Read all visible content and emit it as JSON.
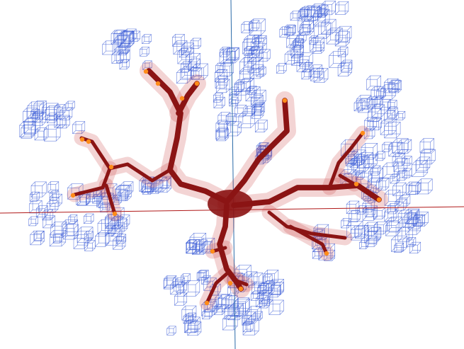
{
  "colors": {
    "background": "#ffffff",
    "axis_horizontal": "#b01818",
    "axis_vertical": "#2a6aa8",
    "bounding_box": "#3a5bd6",
    "vessel": "#8b1414",
    "vessel_halo": "#c83a3a",
    "node": "#ff8c1a"
  },
  "scene": {
    "view": "3d-viewport",
    "objects": [
      "vessel-tree",
      "bounding-box-grid",
      "axes",
      "endpoint-nodes"
    ]
  }
}
